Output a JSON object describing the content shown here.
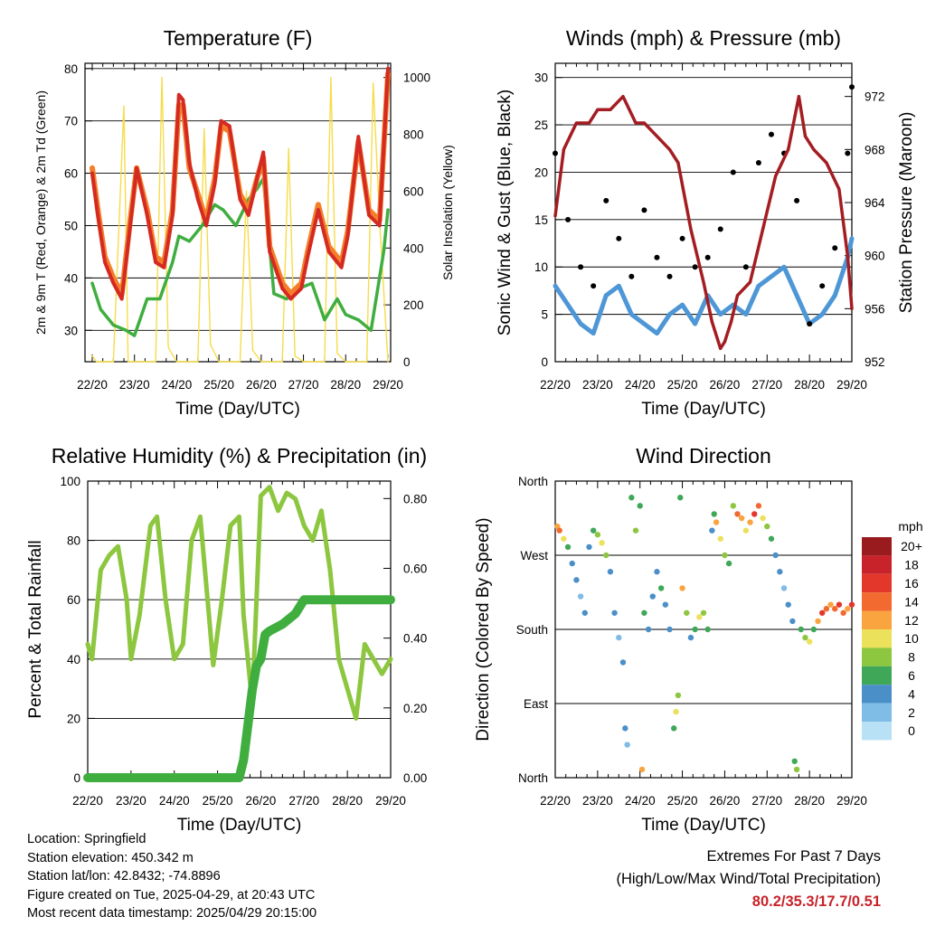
{
  "panels": {
    "temperature": {
      "title": "Temperature (F)",
      "xlabel": "Time (Day/UTC)",
      "ylabel_left": "2m & 9m T (Red, Orange) & 2m Td (Green)",
      "ylabel_right": "Solar Insolation (Yellow)"
    },
    "winds": {
      "title": "Winds (mph) & Pressure (mb)",
      "xlabel": "Time (Day/UTC)",
      "ylabel_left": "Sonic Wind & Gust (Blue, Black)",
      "ylabel_right": "Station Pressure (Maroon)"
    },
    "humidity": {
      "title": "Relative Humidity (%) & Precipitation (in)",
      "xlabel": "Time (Day/UTC)",
      "ylabel_left": "Percent & Total Rainfall"
    },
    "direction": {
      "title": "Wind Direction",
      "xlabel": "Time (Day/UTC)",
      "ylabel_left": "Direction (Colored By Speed)"
    }
  },
  "colorbar": {
    "label": "mph",
    "levels": [
      "20+",
      "18",
      "16",
      "14",
      "12",
      "10",
      "8",
      "6",
      "4",
      "2",
      "0"
    ],
    "colors": [
      "#9a1b1e",
      "#c8232a",
      "#e4372c",
      "#f26a2f",
      "#f9a43f",
      "#ece15b",
      "#8dc63f",
      "#3fa858",
      "#4a8fc8",
      "#7fbce6",
      "#b8e1f5"
    ]
  },
  "info": {
    "location": "Location: Springfield",
    "elevation": "Station elevation: 450.342 m",
    "latlon": "Station lat/lon: 42.8432; -74.8896",
    "created": "Figure created on Tue, 2025-04-29, at 20:43 UTC",
    "recent": "Most recent data timestamp: 2025/04/29 20:15:00"
  },
  "extremes": {
    "line1": "Extremes For Past 7 Days",
    "line2": "(High/Low/Max Wind/Total Precipitation)",
    "values": "80.2/35.3/17.7/0.51"
  },
  "colors": {
    "temp_2m": "#d42a22",
    "temp_9m": "#f47f2a",
    "dewpoint": "#3fae3f",
    "solar": "#f6dc4a",
    "wind": "#4e97d6",
    "gust": "#000000",
    "pressure": "#a31d22",
    "rh": "#8dc63f",
    "precip": "#3fae3f"
  },
  "chart_data": [
    {
      "id": "temperature",
      "type": "line",
      "title": "Temperature (F)",
      "xlabel": "Time (Day/UTC)",
      "ylabel": "2m & 9m T (Red, Orange) & 2m Td (Green)",
      "y2label": "Solar Insolation (Yellow)",
      "x_ticks": [
        "22/20",
        "23/20",
        "24/20",
        "25/20",
        "26/20",
        "27/20",
        "28/20",
        "29/20"
      ],
      "xlim": [
        0,
        7
      ],
      "ylim": [
        24,
        81
      ],
      "y_ticks": [
        30,
        40,
        50,
        60,
        70,
        80
      ],
      "y2lim": [
        0,
        1050
      ],
      "y2_ticks": [
        0,
        200,
        400,
        600,
        800,
        1000
      ],
      "grid": true,
      "series": [
        {
          "name": "2m T",
          "axis": "left",
          "x": [
            0,
            0.15,
            0.3,
            0.5,
            0.7,
            0.9,
            1.05,
            1.3,
            1.5,
            1.7,
            1.9,
            2.05,
            2.15,
            2.3,
            2.5,
            2.7,
            2.9,
            3.05,
            3.25,
            3.5,
            3.7,
            3.9,
            4.05,
            4.2,
            4.5,
            4.7,
            4.95,
            5.1,
            5.35,
            5.6,
            5.9,
            6.05,
            6.3,
            6.55,
            6.8,
            7.0
          ],
          "y": [
            60,
            51,
            43,
            39,
            36,
            50,
            61,
            52,
            43,
            42,
            52,
            75,
            74,
            62,
            55,
            50,
            58,
            70,
            69,
            55,
            52,
            59,
            64,
            45,
            38,
            36,
            38,
            44,
            53,
            45,
            42,
            48,
            67,
            52,
            50,
            80
          ]
        },
        {
          "name": "9m T",
          "axis": "left",
          "x": [
            0,
            0.15,
            0.3,
            0.5,
            0.7,
            0.9,
            1.05,
            1.3,
            1.5,
            1.7,
            1.9,
            2.05,
            2.15,
            2.3,
            2.5,
            2.7,
            2.9,
            3.05,
            3.25,
            3.5,
            3.7,
            3.9,
            4.05,
            4.2,
            4.5,
            4.7,
            4.95,
            5.1,
            5.35,
            5.6,
            5.9,
            6.05,
            6.3,
            6.55,
            6.8,
            7.0
          ],
          "y": [
            61,
            52,
            44,
            40,
            37,
            51,
            61,
            53,
            44,
            43,
            53,
            73,
            73,
            61,
            56,
            51,
            59,
            69,
            68,
            56,
            53,
            59,
            63,
            46,
            39,
            37,
            39,
            45,
            54,
            46,
            43,
            49,
            66,
            53,
            51,
            79
          ]
        },
        {
          "name": "2m Td",
          "axis": "left",
          "x": [
            0,
            0.2,
            0.5,
            0.8,
            1.0,
            1.3,
            1.6,
            1.9,
            2.05,
            2.3,
            2.6,
            2.9,
            3.1,
            3.4,
            3.7,
            3.9,
            4.05,
            4.3,
            4.6,
            4.9,
            5.2,
            5.5,
            5.8,
            6.0,
            6.3,
            6.6,
            6.9,
            7.0
          ],
          "y": [
            39,
            34,
            31,
            30,
            29,
            36,
            36,
            43,
            48,
            47,
            50,
            54,
            53,
            50,
            55,
            57,
            59,
            37,
            36,
            38,
            39,
            32,
            36,
            33,
            32,
            30,
            45,
            53
          ]
        },
        {
          "name": "Solar Insolation",
          "axis": "right",
          "x": [
            0,
            0.1,
            0.5,
            0.75,
            0.85,
            1.0,
            1.5,
            1.65,
            1.8,
            2.0,
            2.5,
            2.65,
            2.8,
            3.0,
            3.5,
            3.65,
            3.8,
            4.0,
            4.5,
            4.65,
            4.8,
            5.0,
            5.5,
            5.65,
            5.8,
            6.0,
            6.5,
            6.65,
            6.8,
            7.0
          ],
          "y": [
            20,
            0,
            0,
            900,
            0,
            0,
            0,
            1000,
            50,
            0,
            0,
            820,
            60,
            0,
            0,
            600,
            40,
            0,
            0,
            750,
            20,
            0,
            0,
            1000,
            30,
            0,
            0,
            980,
            500,
            0
          ]
        }
      ]
    },
    {
      "id": "winds",
      "type": "scatter",
      "title": "Winds (mph) & Pressure (mb)",
      "xlabel": "Time (Day/UTC)",
      "ylabel": "Sonic Wind & Gust (Blue, Black)",
      "y2label": "Station Pressure (Maroon)",
      "x_ticks": [
        "22/20",
        "23/20",
        "24/20",
        "25/20",
        "26/20",
        "27/20",
        "28/20",
        "29/20"
      ],
      "xlim": [
        0,
        7
      ],
      "ylim": [
        0,
        31.5
      ],
      "y_ticks": [
        0,
        5,
        10,
        15,
        20,
        25,
        30
      ],
      "y2lim": [
        952,
        974.5
      ],
      "y2_ticks": [
        952,
        956,
        960,
        964,
        968,
        972
      ],
      "grid": true,
      "series": [
        {
          "name": "Sonic Wind",
          "axis": "left",
          "x": [
            0,
            0.3,
            0.6,
            0.9,
            1.2,
            1.5,
            1.8,
            2.1,
            2.4,
            2.7,
            3.0,
            3.3,
            3.6,
            3.9,
            4.2,
            4.5,
            4.8,
            5.1,
            5.4,
            5.7,
            6.0,
            6.3,
            6.6,
            6.9,
            7.0
          ],
          "y": [
            8,
            6,
            4,
            3,
            7,
            8,
            5,
            4,
            3,
            5,
            6,
            4,
            7,
            5,
            6,
            5,
            8,
            9,
            10,
            7,
            4,
            5,
            7,
            11,
            13
          ]
        },
        {
          "name": "Gust",
          "axis": "left",
          "x": [
            0,
            0.3,
            0.6,
            0.9,
            1.2,
            1.5,
            1.8,
            2.1,
            2.4,
            2.7,
            3.0,
            3.3,
            3.6,
            3.9,
            4.2,
            4.5,
            4.8,
            5.1,
            5.4,
            5.7,
            6.0,
            6.3,
            6.6,
            6.9,
            7.0
          ],
          "y": [
            22,
            15,
            10,
            8,
            17,
            13,
            9,
            16,
            11,
            9,
            13,
            10,
            11,
            14,
            20,
            10,
            21,
            24,
            22,
            17,
            4,
            8,
            12,
            22,
            29
          ]
        },
        {
          "name": "Station Pressure",
          "axis": "right",
          "x": [
            0,
            0.2,
            0.5,
            0.8,
            1.0,
            1.3,
            1.6,
            1.9,
            2.1,
            2.4,
            2.7,
            2.9,
            3.2,
            3.5,
            3.7,
            3.9,
            4.0,
            4.15,
            4.3,
            4.6,
            4.9,
            5.2,
            5.5,
            5.75,
            5.9,
            6.1,
            6.4,
            6.7,
            6.9,
            7.0
          ],
          "y": [
            963,
            968,
            970,
            970,
            971,
            971,
            972,
            970,
            970,
            969,
            968,
            967,
            962,
            958,
            955,
            953,
            953.5,
            955,
            957,
            958,
            962,
            966,
            968,
            972,
            969,
            968,
            967,
            965,
            960,
            956
          ]
        }
      ]
    },
    {
      "id": "humidity",
      "type": "line",
      "title": "Relative Humidity (%) & Precipitation (in)",
      "xlabel": "Time (Day/UTC)",
      "ylabel": "Percent & Total Rainfall",
      "x_ticks": [
        "22/20",
        "23/20",
        "24/20",
        "25/20",
        "26/20",
        "27/20",
        "28/20",
        "29/20"
      ],
      "xlim": [
        0,
        7
      ],
      "ylim": [
        0,
        100
      ],
      "y_ticks": [
        0,
        20,
        40,
        60,
        80,
        100
      ],
      "y2lim": [
        0,
        0.85
      ],
      "y2_ticks": [
        0.0,
        0.2,
        0.4,
        0.6,
        0.8
      ],
      "grid": true,
      "series": [
        {
          "name": "Relative Humidity",
          "axis": "left",
          "x": [
            0,
            0.1,
            0.3,
            0.5,
            0.7,
            0.9,
            1.0,
            1.2,
            1.45,
            1.6,
            1.8,
            2.0,
            2.2,
            2.4,
            2.6,
            2.8,
            2.9,
            3.1,
            3.3,
            3.5,
            3.6,
            3.8,
            4.0,
            4.2,
            4.4,
            4.6,
            4.8,
            5.0,
            5.2,
            5.4,
            5.6,
            5.8,
            6.0,
            6.2,
            6.4,
            6.6,
            6.8,
            7.0
          ],
          "y": [
            45,
            40,
            70,
            75,
            78,
            60,
            40,
            55,
            85,
            88,
            60,
            40,
            45,
            80,
            88,
            55,
            38,
            60,
            85,
            88,
            55,
            25,
            95,
            98,
            90,
            96,
            94,
            85,
            80,
            90,
            70,
            40,
            30,
            20,
            45,
            40,
            35,
            40
          ]
        },
        {
          "name": "Total Precipitation",
          "axis": "right",
          "x": [
            0,
            1.0,
            2.0,
            3.0,
            3.5,
            3.6,
            3.7,
            3.8,
            3.9,
            4.0,
            4.1,
            4.2,
            4.5,
            4.8,
            5.0,
            5.5,
            6.0,
            6.5,
            7.0
          ],
          "y": [
            0,
            0,
            0,
            0,
            0,
            0.05,
            0.15,
            0.25,
            0.32,
            0.34,
            0.41,
            0.42,
            0.44,
            0.47,
            0.51,
            0.51,
            0.51,
            0.51,
            0.51
          ]
        }
      ]
    },
    {
      "id": "direction",
      "type": "scatter",
      "title": "Wind Direction",
      "xlabel": "Time (Day/UTC)",
      "ylabel": "Direction (Colored By Speed)",
      "x_ticks": [
        "22/20",
        "23/20",
        "24/20",
        "25/20",
        "26/20",
        "27/20",
        "28/20",
        "29/20"
      ],
      "xlim": [
        0,
        7
      ],
      "ylim": [
        0,
        360
      ],
      "y_ticks": [
        "North",
        "East",
        "South",
        "West",
        "North"
      ],
      "y_tick_values": [
        0,
        90,
        180,
        270,
        360
      ],
      "colorbar_label": "mph",
      "points": [
        [
          0.05,
          305,
          12
        ],
        [
          0.1,
          300,
          14
        ],
        [
          0.2,
          290,
          10
        ],
        [
          0.3,
          280,
          6
        ],
        [
          0.4,
          260,
          4
        ],
        [
          0.5,
          240,
          3
        ],
        [
          0.6,
          220,
          2
        ],
        [
          0.7,
          200,
          4
        ],
        [
          0.8,
          280,
          3
        ],
        [
          0.9,
          300,
          5
        ],
        [
          1.0,
          295,
          8
        ],
        [
          1.1,
          285,
          10
        ],
        [
          1.2,
          270,
          8
        ],
        [
          1.3,
          250,
          4
        ],
        [
          1.4,
          200,
          3
        ],
        [
          1.5,
          170,
          2
        ],
        [
          1.6,
          140,
          3
        ],
        [
          1.65,
          60,
          4
        ],
        [
          1.7,
          40,
          2
        ],
        [
          1.8,
          340,
          6
        ],
        [
          1.9,
          300,
          8
        ],
        [
          2.0,
          330,
          6
        ],
        [
          2.05,
          10,
          12
        ],
        [
          2.1,
          200,
          5
        ],
        [
          2.2,
          180,
          4
        ],
        [
          2.3,
          220,
          4
        ],
        [
          2.4,
          250,
          3
        ],
        [
          2.5,
          230,
          6
        ],
        [
          2.6,
          210,
          4
        ],
        [
          2.7,
          180,
          3
        ],
        [
          2.8,
          60,
          6
        ],
        [
          2.85,
          80,
          10
        ],
        [
          2.9,
          100,
          8
        ],
        [
          2.95,
          340,
          6
        ],
        [
          3.0,
          230,
          12
        ],
        [
          3.1,
          200,
          8
        ],
        [
          3.2,
          170,
          4
        ],
        [
          3.3,
          180,
          6
        ],
        [
          3.4,
          195,
          10
        ],
        [
          3.5,
          200,
          8
        ],
        [
          3.6,
          180,
          6
        ],
        [
          3.7,
          300,
          4
        ],
        [
          3.75,
          320,
          6
        ],
        [
          3.8,
          310,
          12
        ],
        [
          3.9,
          290,
          10
        ],
        [
          4.0,
          270,
          8
        ],
        [
          4.1,
          260,
          6
        ],
        [
          4.2,
          330,
          8
        ],
        [
          4.3,
          320,
          14
        ],
        [
          4.4,
          315,
          12
        ],
        [
          4.5,
          300,
          10
        ],
        [
          4.6,
          310,
          12
        ],
        [
          4.7,
          320,
          16
        ],
        [
          4.8,
          330,
          14
        ],
        [
          4.9,
          315,
          10
        ],
        [
          5.0,
          305,
          8
        ],
        [
          5.1,
          290,
          6
        ],
        [
          5.2,
          270,
          4
        ],
        [
          5.3,
          250,
          3
        ],
        [
          5.4,
          230,
          2
        ],
        [
          5.5,
          210,
          3
        ],
        [
          5.6,
          190,
          4
        ],
        [
          5.65,
          20,
          6
        ],
        [
          5.7,
          10,
          8
        ],
        [
          5.8,
          180,
          6
        ],
        [
          5.9,
          170,
          8
        ],
        [
          6.0,
          165,
          10
        ],
        [
          6.1,
          180,
          6
        ],
        [
          6.2,
          190,
          12
        ],
        [
          6.3,
          200,
          16
        ],
        [
          6.4,
          205,
          14
        ],
        [
          6.5,
          210,
          12
        ],
        [
          6.6,
          205,
          14
        ],
        [
          6.7,
          210,
          16
        ],
        [
          6.8,
          200,
          14
        ],
        [
          6.9,
          205,
          12
        ],
        [
          7.0,
          210,
          16
        ]
      ]
    }
  ]
}
